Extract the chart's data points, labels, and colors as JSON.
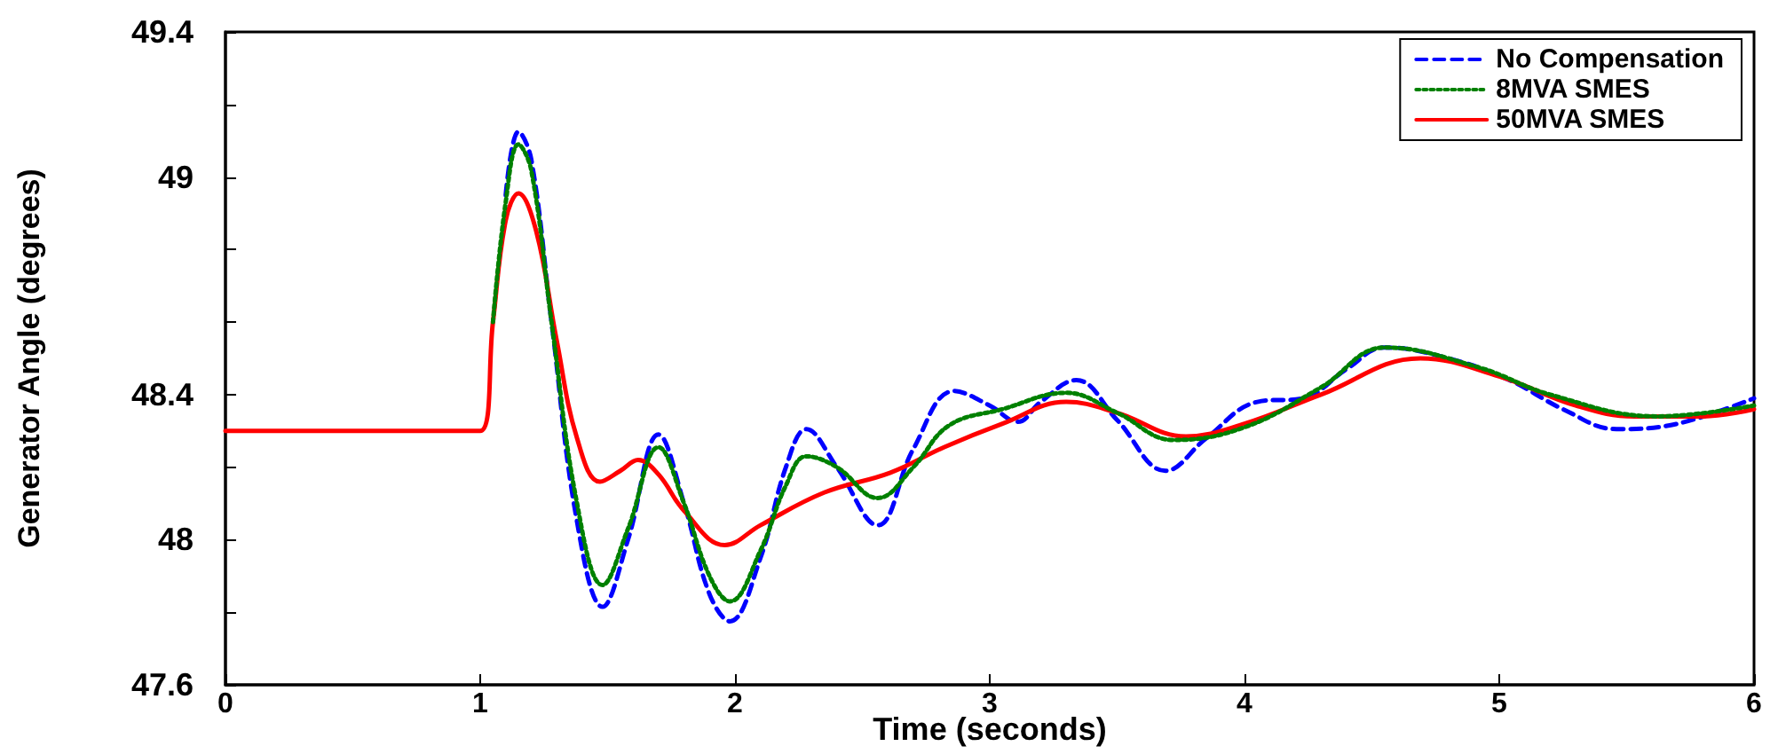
{
  "chart_data": {
    "type": "line",
    "xlabel": "Time (seconds)",
    "ylabel": "Generator Angle (degrees)",
    "xlim": [
      0,
      6
    ],
    "xticks": [
      0,
      1,
      2,
      3,
      4,
      5,
      6
    ],
    "ylim": [
      47.6,
      49.4
    ],
    "yticks": [
      47.6,
      {
        "value": 47.8,
        "label": null
      },
      48,
      {
        "value": 48.2,
        "label": null
      },
      48.4,
      {
        "value": 48.6,
        "label": null
      },
      {
        "value": 48.8,
        "label": null
      },
      49,
      {
        "value": 49.2,
        "label": null
      },
      49.4
    ],
    "grid": false,
    "legend": "top right",
    "marker": "none",
    "series": [
      {
        "name": "No Compensation",
        "color": "#0000ff",
        "line_style": "dashed",
        "x": [
          1.1,
          1.15,
          1.2,
          1.28,
          1.38,
          1.48,
          1.58,
          1.7,
          1.8,
          1.9,
          1.98,
          2.1,
          2.2,
          2.28,
          2.4,
          2.56,
          2.7,
          2.86,
          3.0,
          3.11,
          3.2,
          3.34,
          3.5,
          3.69,
          3.85,
          4.05,
          4.23,
          4.4,
          4.55,
          4.8,
          5.04,
          5.25,
          5.46,
          5.7,
          6
        ],
        "values": [
          48.95,
          49.125,
          49.05,
          48.6,
          48.05,
          47.815,
          48.0,
          48.29,
          48.1,
          47.85,
          47.775,
          47.95,
          48.2,
          48.305,
          48.2,
          48.04,
          48.25,
          48.41,
          48.37,
          48.325,
          48.38,
          48.44,
          48.33,
          48.19,
          48.28,
          48.38,
          48.39,
          48.47,
          48.53,
          48.5,
          48.44,
          48.36,
          48.305,
          48.32,
          48.39
        ]
      },
      {
        "name": "8MVA SMES",
        "color": "#008000",
        "line_style": "dotted",
        "x": [
          1.05,
          1.1,
          1.15,
          1.2,
          1.28,
          1.38,
          1.48,
          1.58,
          1.7,
          1.8,
          1.9,
          1.98,
          2.1,
          2.2,
          2.28,
          2.4,
          2.56,
          2.7,
          2.84,
          3.05,
          3.3,
          3.5,
          3.72,
          4.0,
          4.3,
          4.55,
          4.92,
          5.2,
          5.62,
          6
        ],
        "values": [
          48.6,
          48.93,
          49.09,
          49.02,
          48.6,
          48.1,
          47.875,
          48.03,
          48.255,
          48.1,
          47.9,
          47.83,
          47.97,
          48.15,
          48.23,
          48.2,
          48.115,
          48.2,
          48.315,
          48.36,
          48.405,
          48.35,
          48.275,
          48.31,
          48.42,
          48.53,
          48.475,
          48.4,
          48.34,
          48.37
        ]
      },
      {
        "name": "50MVA SMES",
        "color": "#ff0000",
        "line_style": "solid",
        "x": [
          0,
          1,
          1.05,
          1.1,
          1.15,
          1.22,
          1.3,
          1.38,
          1.47,
          1.55,
          1.62,
          1.7,
          1.8,
          1.96,
          2.1,
          2.35,
          2.61,
          2.82,
          3.05,
          3.3,
          3.5,
          3.77,
          4.0,
          4.3,
          4.69,
          5.0,
          5.3,
          5.53,
          5.8,
          6
        ],
        "values": [
          48.3,
          48.3,
          48.6,
          48.88,
          48.955,
          48.85,
          48.55,
          48.28,
          48.16,
          48.19,
          48.22,
          48.18,
          48.08,
          47.985,
          48.04,
          48.13,
          48.185,
          48.255,
          48.32,
          48.38,
          48.35,
          48.285,
          48.32,
          48.4,
          48.5,
          48.45,
          48.37,
          48.34,
          48.34,
          48.36
        ]
      }
    ]
  }
}
